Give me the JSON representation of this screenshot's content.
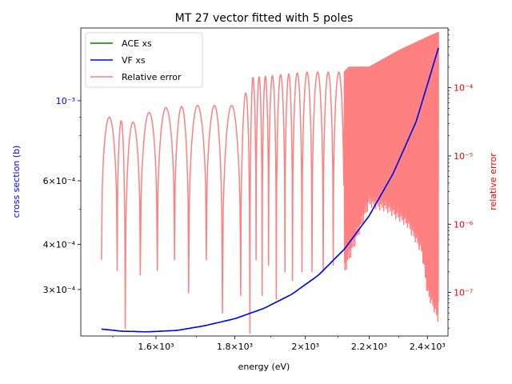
{
  "chart_data": {
    "type": "line",
    "title": "MT 27 vector fitted with 5 poles",
    "xlabel": "energy (eV)",
    "ylabel": "cross section (b)",
    "y2label": "relative error",
    "xscale": "log",
    "yscale": "log",
    "y2scale": "log",
    "xlim": [
      1430,
      2475
    ],
    "ylim": [
      0.000223,
      0.00159
    ],
    "y2lim": [
      2.3e-08,
      0.00075
    ],
    "xticks": [
      {
        "value": 1600,
        "label": "1.6×10³"
      },
      {
        "value": 1800,
        "label": "1.8×10³"
      },
      {
        "value": 2000,
        "label": "2×10³"
      },
      {
        "value": 2200,
        "label": "2.2×10³"
      },
      {
        "value": 2400,
        "label": "2.4×10³"
      }
    ],
    "yticks": [
      {
        "value": 0.0003,
        "label": "3×10⁻⁴"
      },
      {
        "value": 0.0004,
        "label": "4×10⁻⁴"
      },
      {
        "value": 0.0006,
        "label": "6×10⁻⁴"
      },
      {
        "value": 0.001,
        "label": "10⁻³"
      }
    ],
    "y2ticks": [
      {
        "value": 1e-07,
        "label": "10⁻⁷"
      },
      {
        "value": 1e-06,
        "label": "10⁻⁶"
      },
      {
        "value": 1e-05,
        "label": "10⁻⁵"
      },
      {
        "value": 0.0001,
        "label": "10⁻⁴"
      }
    ],
    "legend_position": "upper-left",
    "grid": false,
    "series": [
      {
        "name": "ACE xs",
        "axis": "left",
        "color": "#008000",
        "x": [
          1475,
          1520,
          1580,
          1650,
          1720,
          1800,
          1880,
          1960,
          2040,
          2120,
          2200,
          2280,
          2360,
          2440
        ],
        "y": [
          0.000233,
          0.00023,
          0.000229,
          0.000231,
          0.000238,
          0.000249,
          0.000266,
          0.000291,
          0.000329,
          0.000388,
          0.00048,
          0.000628,
          0.000875,
          0.0014
        ]
      },
      {
        "name": "VF xs",
        "axis": "left",
        "color": "#0000ff",
        "x": [
          1475,
          1520,
          1580,
          1650,
          1720,
          1800,
          1880,
          1960,
          2040,
          2120,
          2200,
          2280,
          2360,
          2440
        ],
        "y": [
          0.000233,
          0.00023,
          0.000229,
          0.000231,
          0.000238,
          0.000249,
          0.000266,
          0.000291,
          0.000329,
          0.000388,
          0.00048,
          0.000628,
          0.000875,
          0.0014
        ]
      },
      {
        "name": "Relative error",
        "axis": "right",
        "color": "#ff8080",
        "envelope": {
          "x": [
            1475,
            1540,
            1600,
            1700,
            1820,
            1840,
            1900,
            2000,
            2120,
            2135,
            2200,
            2300,
            2400,
            2440
          ],
          "y": [
            4e-05,
            3e-05,
            5e-05,
            5.5e-05,
            5.5e-05,
            0.00014,
            0.00015,
            0.00017,
            0.00017,
            0.0002,
            0.0002,
            0.00035,
            0.00055,
            0.00065
          ]
        },
        "minima_x": [
          1475,
          1510,
          1528,
          1563,
          1603,
          1645,
          1680,
          1725,
          1767,
          1816,
          1841,
          1858,
          1875,
          1893,
          1915,
          1940,
          1962,
          1990,
          2020,
          2054,
          2085,
          2120
        ],
        "minima_y": [
          3e-07,
          2.1e-07,
          3e-08,
          1.8e-07,
          2.1e-07,
          3e-07,
          1e-07,
          3e-07,
          5e-08,
          9e-08,
          2.5e-08,
          3e-07,
          9e-08,
          2.5e-07,
          8e-08,
          2e-07,
          1.5e-07,
          2e-07,
          2e-07,
          2e-07,
          2.5e-07,
          9e-08
        ],
        "dense_region_x": [
          2120,
          2440
        ],
        "dense_floor_x": [
          2120,
          2200,
          2260,
          2330,
          2380,
          2400,
          2440
        ],
        "dense_floor_y": [
          3e-07,
          3e-06,
          2.5e-06,
          1.5e-06,
          6e-07,
          1.5e-07,
          6e-08
        ]
      }
    ]
  }
}
